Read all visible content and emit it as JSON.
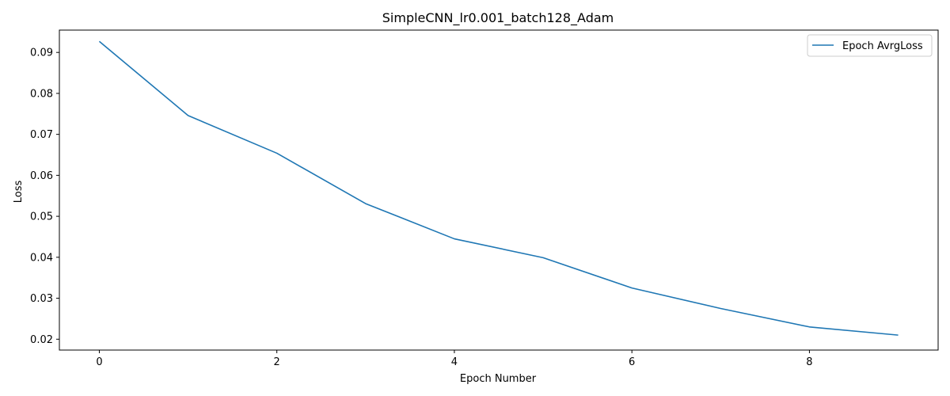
{
  "chart_data": {
    "type": "line",
    "title": "SimpleCNN_lr0.001_batch128_Adam",
    "xlabel": "Epoch Number",
    "ylabel": "Loss",
    "x": [
      0,
      1,
      2,
      3,
      4,
      5,
      6,
      7,
      8,
      9
    ],
    "series": [
      {
        "name": "Epoch AvrgLoss",
        "color": "#1f77b4",
        "values": [
          0.0927,
          0.0746,
          0.0654,
          0.0531,
          0.0445,
          0.0399,
          0.0325,
          0.0275,
          0.023,
          0.021
        ]
      }
    ],
    "xlim": [
      -0.45,
      9.45
    ],
    "ylim": [
      0.01735,
      0.09545
    ],
    "xticks": [
      0,
      2,
      4,
      6,
      8
    ],
    "xtick_labels": [
      "0",
      "2",
      "4",
      "6",
      "8"
    ],
    "yticks": [
      0.02,
      0.03,
      0.04,
      0.05,
      0.06,
      0.07,
      0.08,
      0.09
    ],
    "ytick_labels": [
      "0.02",
      "0.03",
      "0.04",
      "0.05",
      "0.06",
      "0.07",
      "0.08",
      "0.09"
    ],
    "grid": false,
    "legend_position": "top-right"
  }
}
